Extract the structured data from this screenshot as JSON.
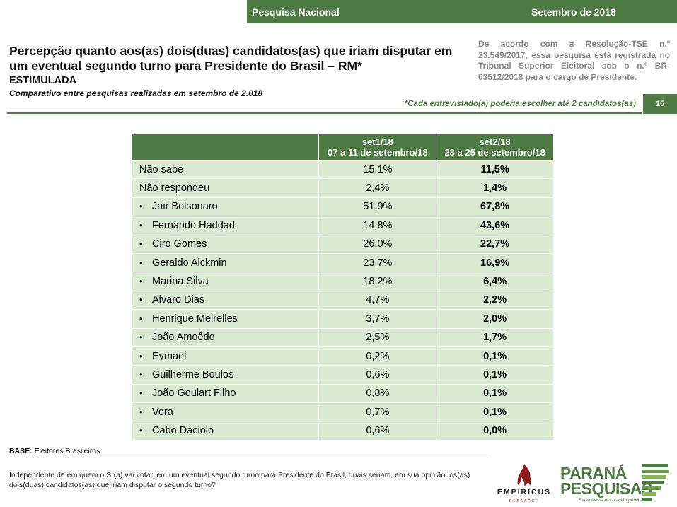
{
  "header": {
    "left_label": "Pesquisa Nacional",
    "right_label": "Setembro de 2018"
  },
  "title": "Percepção quanto aos(as) dois(duas) candidatos(as) que iriam disputar em um eventual segundo turno para Presidente do Brasil – RM*",
  "subtitle": "ESTIMULADA",
  "comparison": "Comparativo entre pesquisas realizadas em setembro de 2.018",
  "legal_note": "De acordo com a Resolução-TSE n.º 23.549/2017, essa pesquisa está registrada no Tribunal Superior Eleitoral sob o n.º BR-03512/2018 para o cargo de Presidente.",
  "footnote": "*Cada entrevistado(a) poderia escolher até 2 candidatos(as)",
  "page_number": "15",
  "table": {
    "columns": [
      {
        "title": "set1/18",
        "dates": "07 a 11 de setembro/18"
      },
      {
        "title": "set2/18",
        "dates": "23 a 25 de setembro/18"
      }
    ],
    "rows": [
      {
        "label": "Não sabe",
        "bullet": "",
        "v1": "15,1%",
        "v2": "11,5%"
      },
      {
        "label": "Não respondeu",
        "bullet": "",
        "v1": "2,4%",
        "v2": "1,4%"
      },
      {
        "label": "Jair Bolsonaro",
        "bullet": "•",
        "v1": "51,9%",
        "v2": "67,8%"
      },
      {
        "label": "Fernando Haddad",
        "bullet": "•",
        "v1": "14,8%",
        "v2": "43,6%"
      },
      {
        "label": "Ciro Gomes",
        "bullet": "•",
        "v1": "26,0%",
        "v2": "22,7%"
      },
      {
        "label": "Geraldo Alckmin",
        "bullet": "•",
        "v1": "23,7%",
        "v2": "16,9%"
      },
      {
        "label": "Marina Silva",
        "bullet": "•",
        "v1": "18,2%",
        "v2": "6,4%"
      },
      {
        "label": "Alvaro Dias",
        "bullet": "•",
        "v1": "4,7%",
        "v2": "2,2%"
      },
      {
        "label": "Henrique Meirelles",
        "bullet": "•",
        "v1": "3,7%",
        "v2": "2,0%"
      },
      {
        "label": "João Amoêdo",
        "bullet": "•",
        "v1": "2,5%",
        "v2": "1,7%"
      },
      {
        "label": "Eymael",
        "bullet": "•",
        "v1": "0,2%",
        "v2": "0,1%"
      },
      {
        "label": "Guilherme Boulos",
        "bullet": "•",
        "v1": "0,6%",
        "v2": "0,1%"
      },
      {
        "label": "João Goulart Filho",
        "bullet": "•",
        "v1": "0,8%",
        "v2": "0,1%"
      },
      {
        "label": "Vera",
        "bullet": "•",
        "v1": "0,7%",
        "v2": "0,1%"
      },
      {
        "label": "Cabo Daciolo",
        "bullet": "•",
        "v1": "0,6%",
        "v2": "0,0%"
      }
    ]
  },
  "base": {
    "label": "BASE:",
    "value": "Eleitores Brasileiros"
  },
  "question": "Independente de em quem o Sr(a) vai votar, em um eventual segundo turno para Presidente do Brasil, quais seriam, em sua opinião, os(as) dois(duas) candidatos(as) que iriam disputar o segundo turno?",
  "logos": {
    "empiricus": {
      "name": "EMPIRICUS",
      "sub": "RESEARCH",
      "color": "#8b1a1a"
    },
    "parana": {
      "line1": "PARANÁ",
      "line2": "PESQUISAS",
      "tagline": "Especialista em opinião pública.",
      "color": "#4e7a43"
    }
  },
  "colors": {
    "brand_green": "#4e7a43",
    "row_fill": "#d9e9d2",
    "legal_gray": "#8a8a8a"
  }
}
